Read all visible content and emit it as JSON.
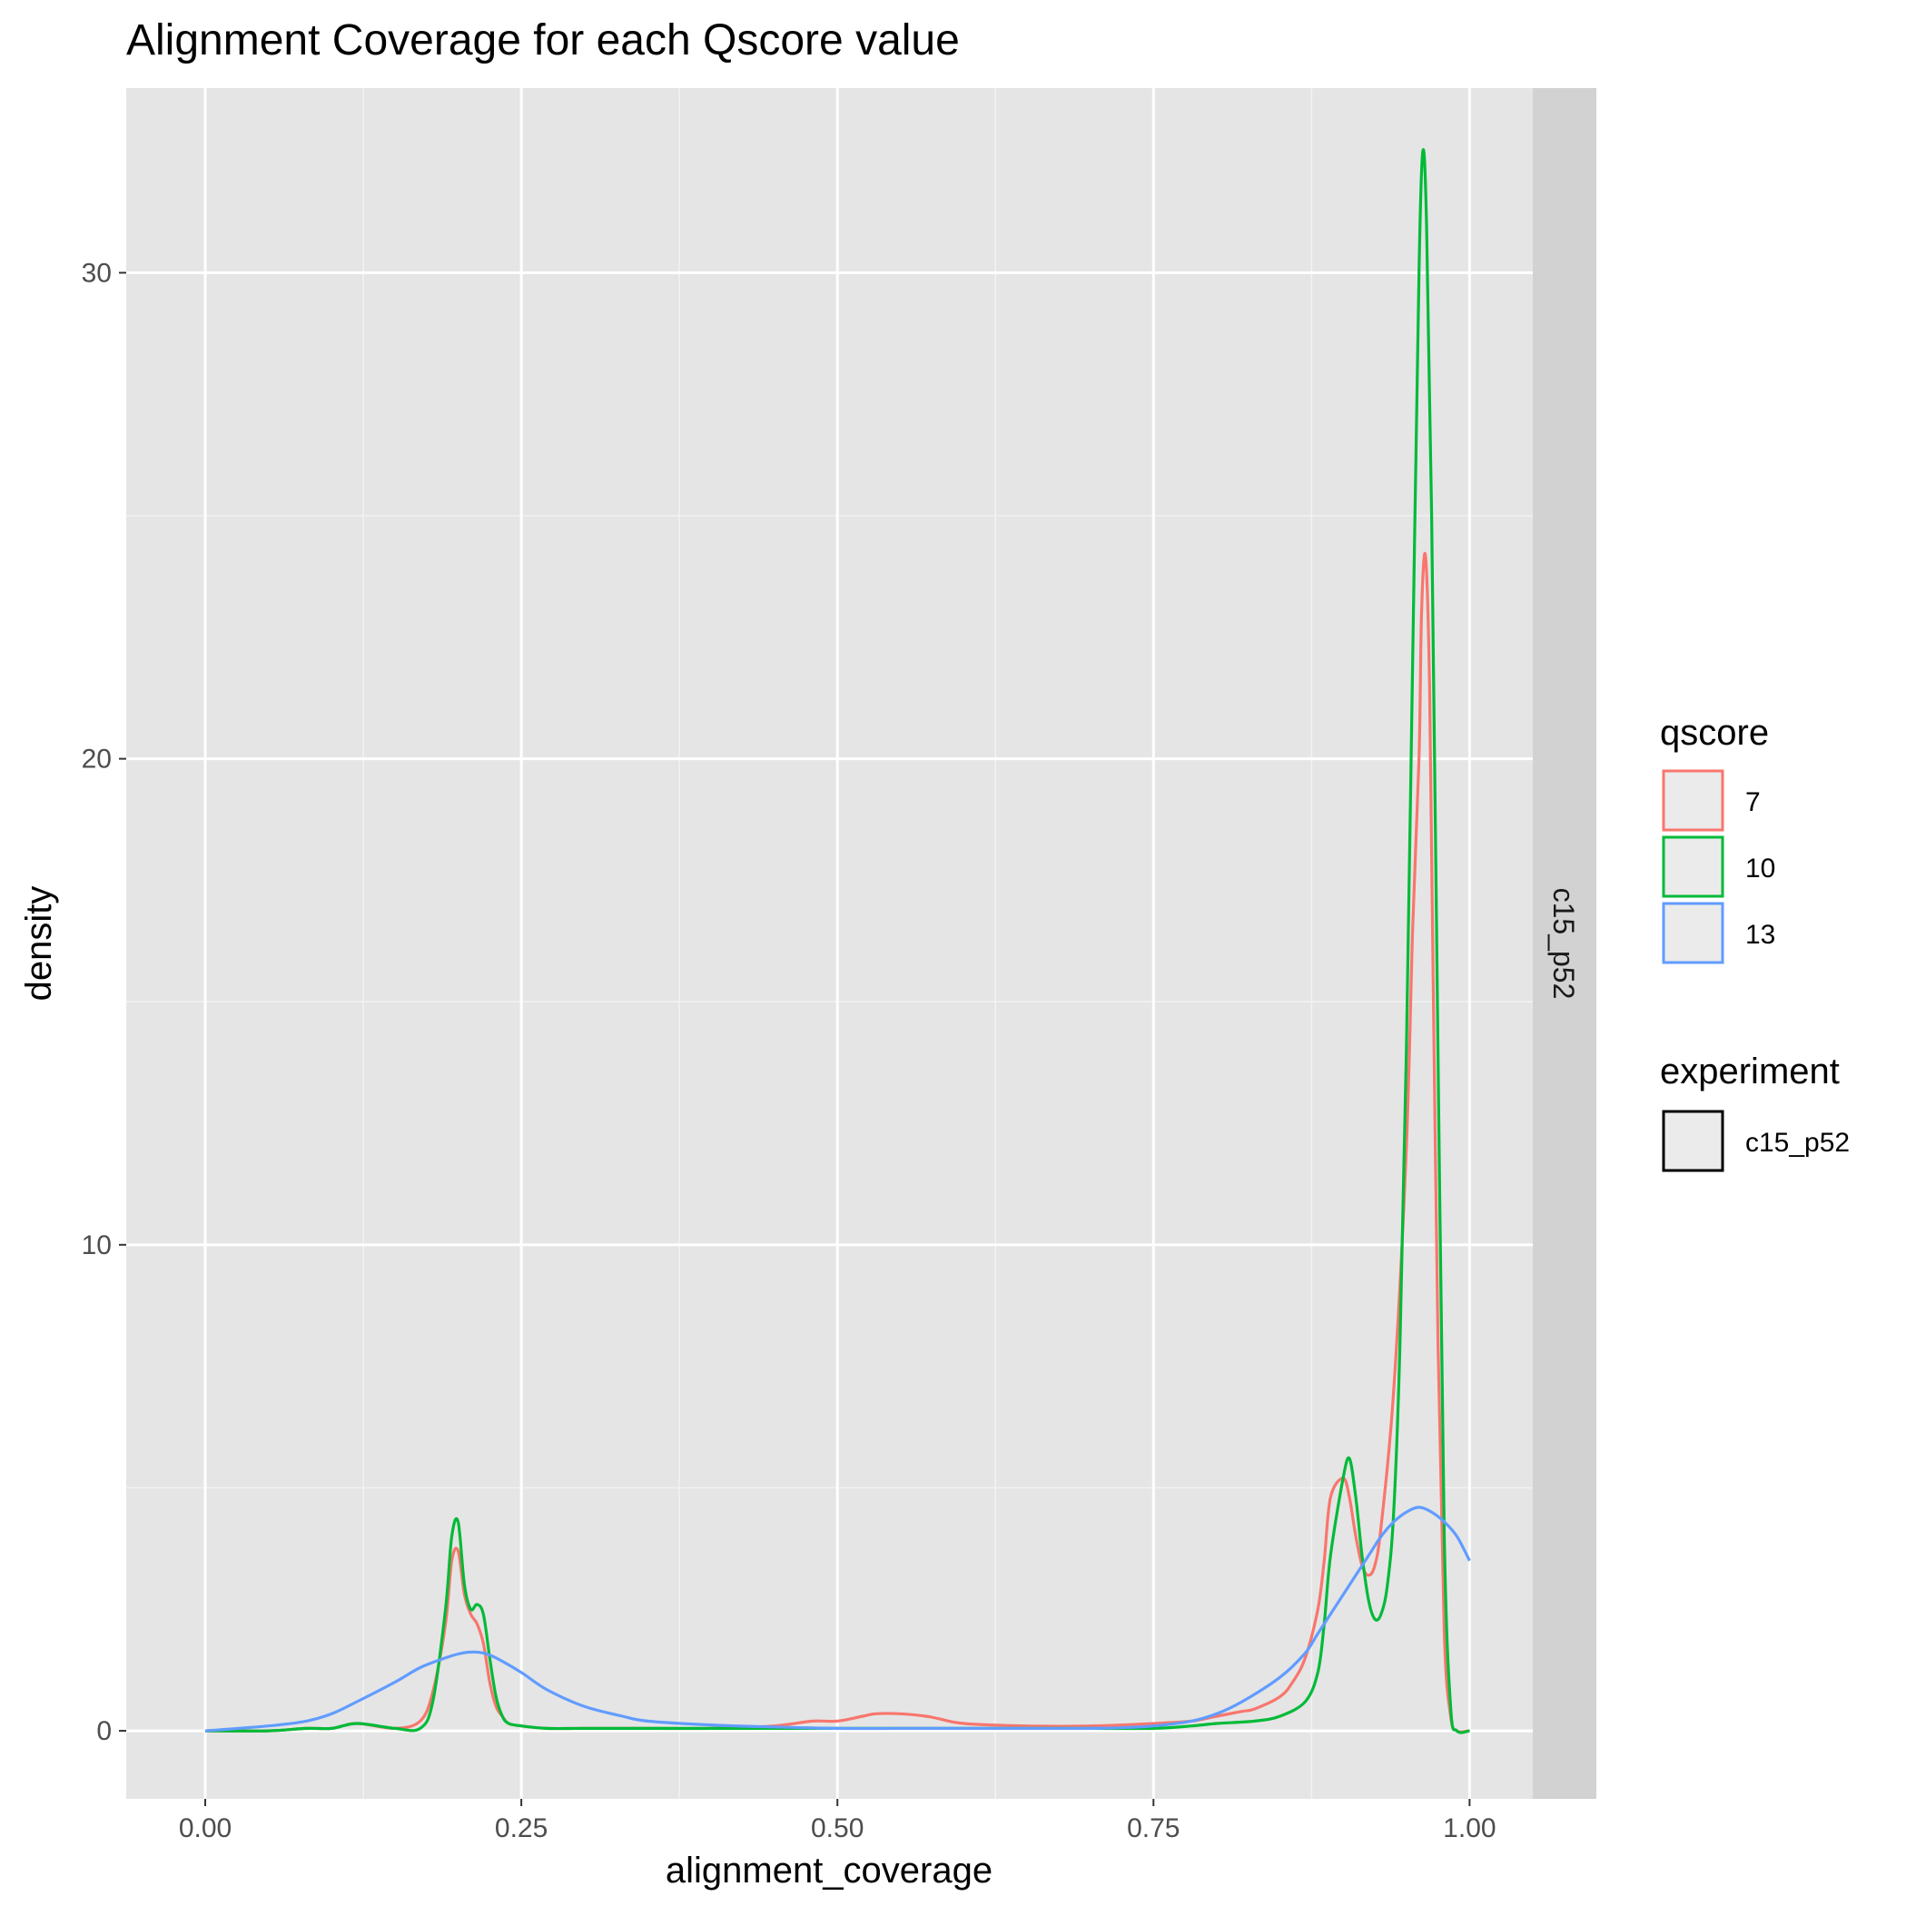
{
  "chart_data": {
    "type": "line",
    "title": "Alignment Coverage for each Qscore value",
    "xlabel": "alignment_coverage",
    "ylabel": "density",
    "xlim": [
      -0.0625,
      1.05
    ],
    "ylim": [
      -1.4,
      33.8
    ],
    "x_ticks": [
      0.0,
      0.25,
      0.5,
      0.75,
      1.0
    ],
    "x_tick_labels": [
      "0.00",
      "0.25",
      "0.50",
      "0.75",
      "1.00"
    ],
    "y_ticks": [
      0,
      10,
      20,
      30
    ],
    "y_tick_labels": [
      "0",
      "10",
      "20",
      "30"
    ],
    "grid": true,
    "facet_label": "c15_p52",
    "legend_position": "right",
    "legend": {
      "title": "qscore",
      "entries": [
        "7",
        "10",
        "13"
      ]
    },
    "legend2": {
      "title": "experiment",
      "entries": [
        "c15_p52"
      ]
    },
    "colors": {
      "panel": "#e5e5e5",
      "grid": "#ffffff",
      "strip": "#d2d2d2",
      "q7": "#f8766d",
      "q10": "#00ba38",
      "q13": "#619cff"
    },
    "series": [
      {
        "name": "7",
        "color": "#f8766d",
        "x": [
          0.0,
          0.05,
          0.08,
          0.1,
          0.12,
          0.15,
          0.17,
          0.18,
          0.19,
          0.195,
          0.2,
          0.205,
          0.21,
          0.215,
          0.22,
          0.225,
          0.23,
          0.235,
          0.24,
          0.25,
          0.27,
          0.3,
          0.35,
          0.4,
          0.45,
          0.48,
          0.5,
          0.52,
          0.53,
          0.55,
          0.57,
          0.58,
          0.6,
          0.65,
          0.7,
          0.75,
          0.78,
          0.8,
          0.82,
          0.83,
          0.85,
          0.86,
          0.87,
          0.88,
          0.885,
          0.89,
          0.9,
          0.905,
          0.91,
          0.915,
          0.92,
          0.925,
          0.93,
          0.94,
          0.95,
          0.955,
          0.96,
          0.962,
          0.965,
          0.968,
          0.97,
          0.975,
          0.98,
          0.985,
          0.99,
          1.0
        ],
        "y": [
          0.0,
          0.0,
          0.05,
          0.05,
          0.15,
          0.05,
          0.2,
          0.8,
          2.2,
          3.5,
          3.7,
          2.8,
          2.4,
          2.2,
          1.8,
          1.0,
          0.5,
          0.3,
          0.15,
          0.1,
          0.05,
          0.05,
          0.05,
          0.05,
          0.1,
          0.2,
          0.2,
          0.3,
          0.35,
          0.35,
          0.3,
          0.25,
          0.15,
          0.1,
          0.1,
          0.15,
          0.2,
          0.3,
          0.4,
          0.45,
          0.7,
          1.0,
          1.5,
          2.5,
          3.5,
          4.8,
          5.2,
          4.8,
          4.0,
          3.4,
          3.2,
          3.4,
          4.2,
          7.0,
          12.0,
          16.5,
          20.0,
          23.0,
          24.2,
          22.0,
          18.0,
          8.0,
          2.0,
          0.3,
          0.0,
          0.0
        ]
      },
      {
        "name": "10",
        "color": "#00ba38",
        "x": [
          0.0,
          0.05,
          0.08,
          0.1,
          0.12,
          0.15,
          0.17,
          0.18,
          0.19,
          0.195,
          0.2,
          0.205,
          0.21,
          0.215,
          0.22,
          0.225,
          0.23,
          0.235,
          0.24,
          0.25,
          0.27,
          0.3,
          0.35,
          0.4,
          0.45,
          0.5,
          0.55,
          0.6,
          0.65,
          0.7,
          0.75,
          0.78,
          0.8,
          0.83,
          0.85,
          0.87,
          0.88,
          0.885,
          0.89,
          0.9,
          0.905,
          0.91,
          0.915,
          0.92,
          0.925,
          0.93,
          0.935,
          0.94,
          0.945,
          0.95,
          0.955,
          0.96,
          0.963,
          0.966,
          0.97,
          0.975,
          0.98,
          0.985,
          0.99,
          1.0
        ],
        "y": [
          0.0,
          0.0,
          0.05,
          0.05,
          0.15,
          0.05,
          0.05,
          0.6,
          2.5,
          4.0,
          4.3,
          3.0,
          2.5,
          2.6,
          2.4,
          1.5,
          0.7,
          0.3,
          0.15,
          0.1,
          0.05,
          0.05,
          0.05,
          0.05,
          0.05,
          0.05,
          0.05,
          0.05,
          0.05,
          0.05,
          0.05,
          0.1,
          0.15,
          0.2,
          0.3,
          0.6,
          1.2,
          2.2,
          3.6,
          5.2,
          5.6,
          4.8,
          3.6,
          2.7,
          2.3,
          2.4,
          3.0,
          4.5,
          8.0,
          14.0,
          22.0,
          30.0,
          32.5,
          31.0,
          25.0,
          14.0,
          4.0,
          0.5,
          0.0,
          0.0
        ]
      },
      {
        "name": "13",
        "color": "#619cff",
        "x": [
          0.0,
          0.05,
          0.08,
          0.1,
          0.12,
          0.15,
          0.17,
          0.19,
          0.2,
          0.21,
          0.22,
          0.23,
          0.25,
          0.27,
          0.3,
          0.33,
          0.35,
          0.4,
          0.45,
          0.5,
          0.55,
          0.6,
          0.65,
          0.7,
          0.73,
          0.75,
          0.78,
          0.8,
          0.82,
          0.85,
          0.87,
          0.88,
          0.9,
          0.92,
          0.93,
          0.94,
          0.95,
          0.96,
          0.97,
          0.98,
          0.99,
          1.0
        ],
        "y": [
          0.0,
          0.1,
          0.2,
          0.35,
          0.6,
          1.0,
          1.3,
          1.5,
          1.58,
          1.62,
          1.6,
          1.5,
          1.2,
          0.85,
          0.5,
          0.3,
          0.2,
          0.12,
          0.08,
          0.05,
          0.05,
          0.05,
          0.05,
          0.05,
          0.07,
          0.1,
          0.2,
          0.35,
          0.6,
          1.1,
          1.6,
          2.0,
          2.8,
          3.6,
          4.0,
          4.3,
          4.5,
          4.6,
          4.5,
          4.3,
          4.0,
          3.5
        ]
      }
    ]
  }
}
